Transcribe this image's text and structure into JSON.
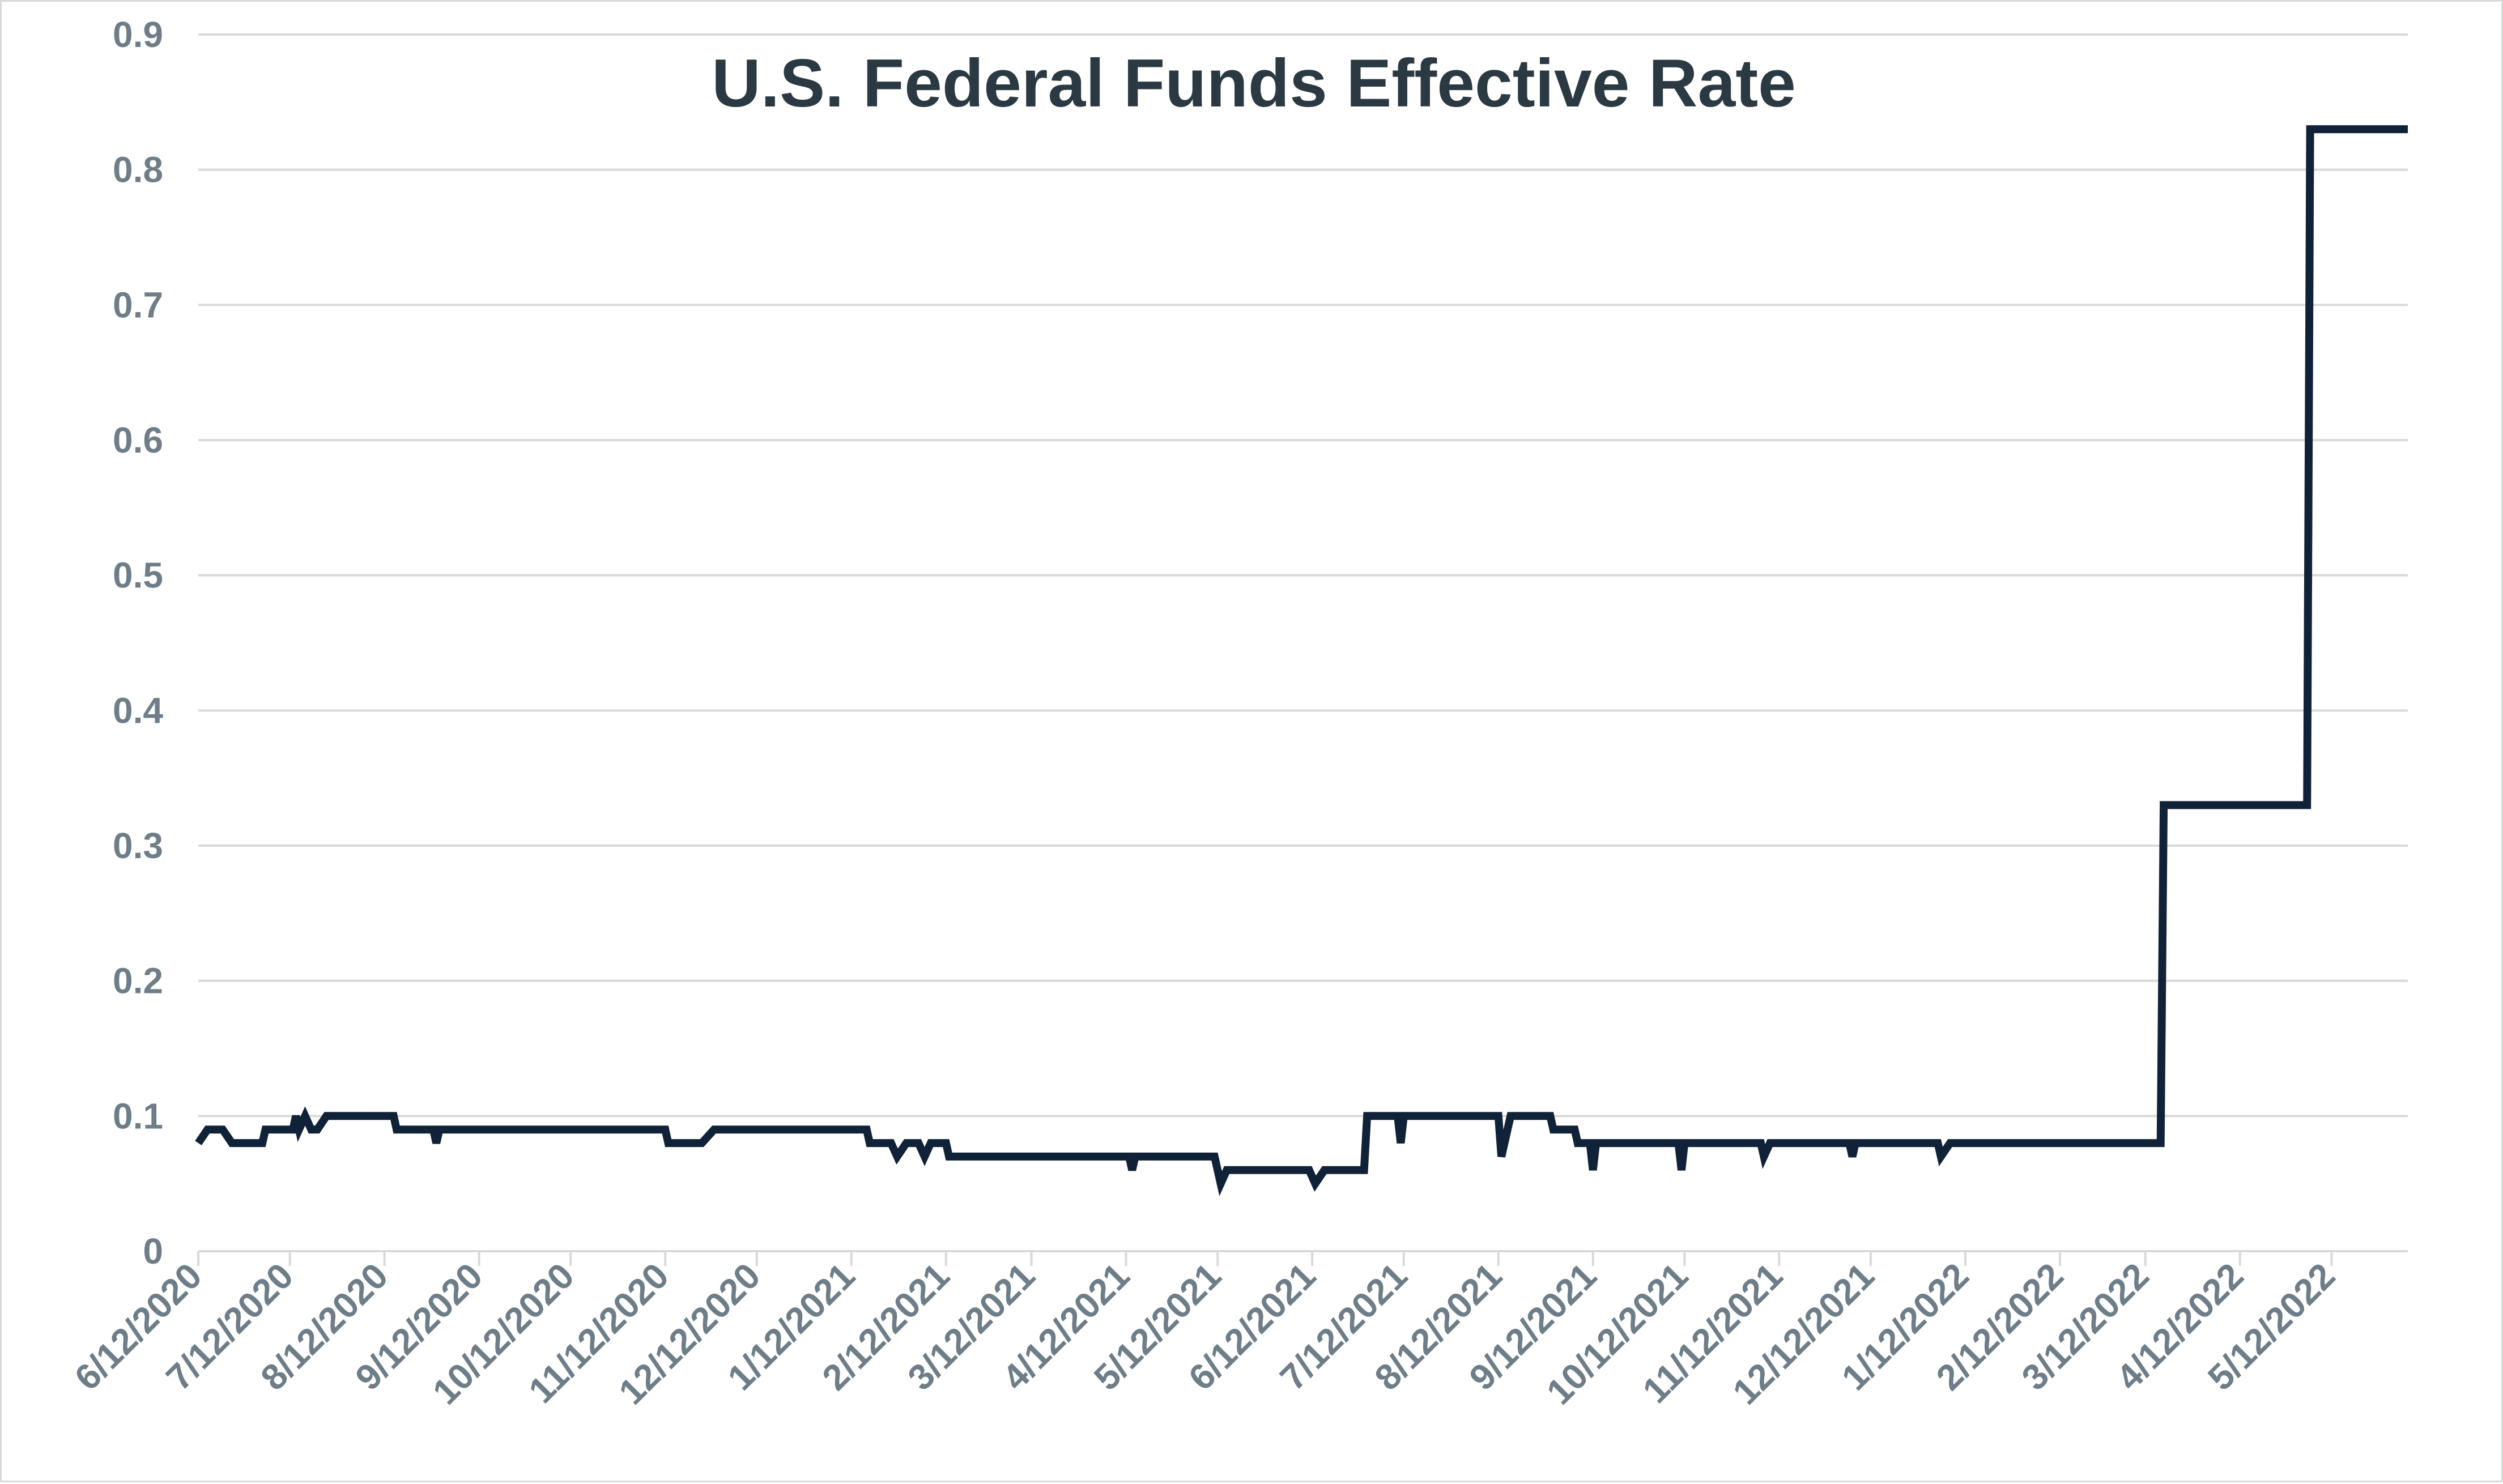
{
  "colors": {
    "line": "#0f2237",
    "grid": "#d9d9d9",
    "tick_text": "#6e7e89",
    "title": "#2b3a42",
    "background": "#ffffff"
  },
  "chart_data": {
    "type": "line",
    "title": "U.S. Federal Funds Effective Rate",
    "xlabel": "",
    "ylabel": "",
    "ylim": [
      0,
      0.9
    ],
    "y_ticks": [
      "0",
      "0.1",
      "0.2",
      "0.3",
      "0.4",
      "0.5",
      "0.6",
      "0.7",
      "0.8",
      "0.9"
    ],
    "x_ticks": [
      "6/12/2020",
      "7/12/2020",
      "8/12/2020",
      "9/12/2020",
      "10/12/2020",
      "11/12/2020",
      "12/12/2020",
      "1/12/2021",
      "2/12/2021",
      "3/12/2021",
      "4/12/2021",
      "5/12/2021",
      "6/12/2021",
      "7/12/2021",
      "8/12/2021",
      "9/12/2021",
      "10/12/2021",
      "11/12/2021",
      "12/12/2021",
      "1/12/2022",
      "2/12/2022",
      "3/12/2022",
      "4/12/2022",
      "5/12/2022"
    ],
    "xlim": [
      "2020-06-12",
      "2022-06-06"
    ],
    "grid": true,
    "legend": "none",
    "series": [
      {
        "points": [
          [
            "2020-06-12",
            0.08
          ],
          [
            "2020-06-15",
            0.09
          ],
          [
            "2020-06-20",
            0.09
          ],
          [
            "2020-06-23",
            0.08
          ],
          [
            "2020-07-03",
            0.08
          ],
          [
            "2020-07-04",
            0.09
          ],
          [
            "2020-07-13",
            0.09
          ],
          [
            "2020-07-14",
            0.1
          ],
          [
            "2020-07-15",
            0.09
          ],
          [
            "2020-07-17",
            0.1
          ],
          [
            "2020-07-19",
            0.09
          ],
          [
            "2020-07-21",
            0.09
          ],
          [
            "2020-07-24",
            0.1
          ],
          [
            "2020-08-15",
            0.1
          ],
          [
            "2020-08-16",
            0.09
          ],
          [
            "2020-08-28",
            0.09
          ],
          [
            "2020-08-29",
            0.08
          ],
          [
            "2020-08-30",
            0.09
          ],
          [
            "2020-11-12",
            0.09
          ],
          [
            "2020-11-13",
            0.08
          ],
          [
            "2020-11-24",
            0.08
          ],
          [
            "2020-11-28",
            0.09
          ],
          [
            "2021-01-17",
            0.09
          ],
          [
            "2021-01-18",
            0.08
          ],
          [
            "2021-01-25",
            0.08
          ],
          [
            "2021-01-27",
            0.07
          ],
          [
            "2021-01-30",
            0.08
          ],
          [
            "2021-02-03",
            0.08
          ],
          [
            "2021-02-05",
            0.07
          ],
          [
            "2021-02-07",
            0.08
          ],
          [
            "2021-02-12",
            0.08
          ],
          [
            "2021-02-13",
            0.07
          ],
          [
            "2021-04-13",
            0.07
          ],
          [
            "2021-04-14",
            0.06
          ],
          [
            "2021-04-15",
            0.07
          ],
          [
            "2021-05-11",
            0.07
          ],
          [
            "2021-05-13",
            0.05
          ],
          [
            "2021-05-15",
            0.06
          ],
          [
            "2021-06-11",
            0.06
          ],
          [
            "2021-06-13",
            0.05
          ],
          [
            "2021-06-16",
            0.06
          ],
          [
            "2021-06-29",
            0.06
          ],
          [
            "2021-06-30",
            0.1
          ],
          [
            "2021-07-10",
            0.1
          ],
          [
            "2021-07-11",
            0.08
          ],
          [
            "2021-07-12",
            0.1
          ],
          [
            "2021-08-12",
            0.1
          ],
          [
            "2021-08-13",
            0.07
          ],
          [
            "2021-08-16",
            0.1
          ],
          [
            "2021-08-29",
            0.1
          ],
          [
            "2021-08-30",
            0.09
          ],
          [
            "2021-09-06",
            0.09
          ],
          [
            "2021-09-07",
            0.08
          ],
          [
            "2021-09-11",
            0.08
          ],
          [
            "2021-09-12",
            0.06
          ],
          [
            "2021-09-13",
            0.08
          ],
          [
            "2021-10-10",
            0.08
          ],
          [
            "2021-10-11",
            0.06
          ],
          [
            "2021-10-12",
            0.08
          ],
          [
            "2021-11-06",
            0.08
          ],
          [
            "2021-11-07",
            0.07
          ],
          [
            "2021-11-09",
            0.08
          ],
          [
            "2021-12-05",
            0.08
          ],
          [
            "2021-12-06",
            0.07
          ],
          [
            "2021-12-07",
            0.08
          ],
          [
            "2022-01-03",
            0.08
          ],
          [
            "2022-01-04",
            0.07
          ],
          [
            "2022-01-07",
            0.08
          ],
          [
            "2022-03-17",
            0.08
          ],
          [
            "2022-03-18",
            0.33
          ],
          [
            "2022-05-04",
            0.33
          ],
          [
            "2022-05-05",
            0.83
          ],
          [
            "2022-06-06",
            0.83
          ]
        ]
      }
    ]
  }
}
